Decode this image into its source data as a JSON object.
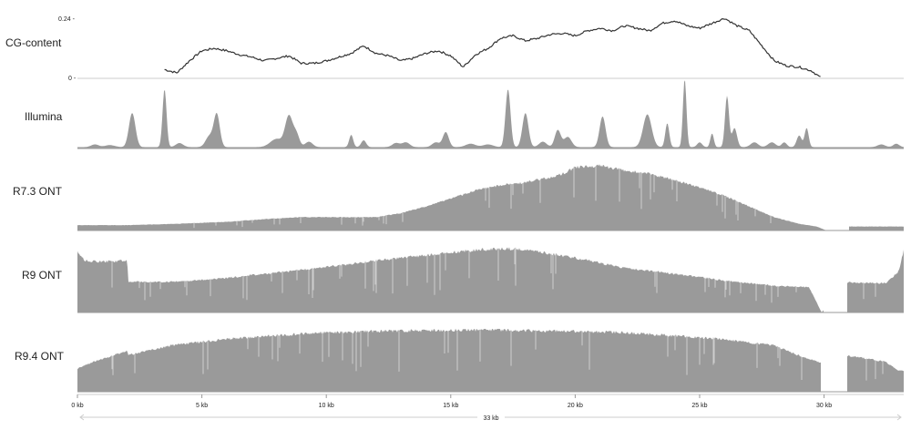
{
  "chart_data": {
    "type": "area",
    "x_unit": "kb",
    "xlim": [
      0,
      33.2
    ],
    "x_ticks": [
      {
        "value": 0,
        "label": "0 kb"
      },
      {
        "value": 5,
        "label": "5 kb"
      },
      {
        "value": 10,
        "label": "10 kb"
      },
      {
        "value": 15,
        "label": "15 kb"
      },
      {
        "value": 20,
        "label": "20 kb"
      },
      {
        "value": 25,
        "label": "25 kb"
      },
      {
        "value": 30,
        "label": "30 kb"
      }
    ],
    "span_label": "33 kb",
    "colors": {
      "fill": "#9a9a9a",
      "line": "#333333",
      "axis": "#cccccc"
    },
    "tracks": [
      {
        "name": "CG-content",
        "style": "line",
        "ylim": [
          0,
          0.24
        ],
        "y_ticks": [
          {
            "value": 0.24,
            "label": "0.24 -"
          },
          {
            "value": 0,
            "label": "0 -"
          }
        ],
        "x": [
          3.5,
          4.0,
          4.5,
          5.0,
          5.5,
          6.0,
          6.5,
          7.0,
          7.5,
          8.0,
          8.5,
          9.0,
          9.5,
          10.0,
          10.5,
          11.0,
          11.5,
          12.0,
          12.5,
          13.0,
          13.5,
          14.0,
          14.5,
          15.0,
          15.5,
          16.0,
          16.5,
          17.0,
          17.5,
          18.0,
          18.5,
          19.0,
          19.5,
          20.0,
          20.5,
          21.0,
          21.5,
          22.0,
          22.5,
          23.0,
          23.5,
          24.0,
          24.5,
          25.0,
          25.5,
          26.0,
          26.5,
          27.0,
          27.5,
          28.0,
          28.5,
          29.0,
          29.5,
          29.9
        ],
        "values": [
          0.035,
          0.022,
          0.07,
          0.11,
          0.12,
          0.11,
          0.095,
          0.085,
          0.07,
          0.08,
          0.09,
          0.06,
          0.06,
          0.07,
          0.085,
          0.1,
          0.13,
          0.1,
          0.09,
          0.07,
          0.08,
          0.1,
          0.11,
          0.09,
          0.045,
          0.095,
          0.12,
          0.16,
          0.17,
          0.15,
          0.16,
          0.175,
          0.18,
          0.17,
          0.19,
          0.2,
          0.19,
          0.21,
          0.2,
          0.19,
          0.22,
          0.23,
          0.21,
          0.2,
          0.22,
          0.24,
          0.21,
          0.19,
          0.13,
          0.07,
          0.05,
          0.045,
          0.03,
          0.0
        ]
      },
      {
        "name": "Illumina",
        "style": "peaks",
        "baseline": 0.02,
        "peaks": [
          [
            0.7,
            0.04,
            0.15
          ],
          [
            1.3,
            0.03,
            0.2
          ],
          [
            2.2,
            0.5,
            0.13
          ],
          [
            3.5,
            0.85,
            0.08
          ],
          [
            4.1,
            0.06,
            0.15
          ],
          [
            5.3,
            0.16,
            0.15
          ],
          [
            5.6,
            0.48,
            0.12
          ],
          [
            8.0,
            0.12,
            0.25
          ],
          [
            8.5,
            0.45,
            0.15
          ],
          [
            8.8,
            0.18,
            0.12
          ],
          [
            9.3,
            0.08,
            0.15
          ],
          [
            11.0,
            0.18,
            0.08
          ],
          [
            11.5,
            0.1,
            0.1
          ],
          [
            12.8,
            0.06,
            0.15
          ],
          [
            13.2,
            0.07,
            0.15
          ],
          [
            14.4,
            0.07,
            0.15
          ],
          [
            14.8,
            0.22,
            0.12
          ],
          [
            15.8,
            0.05,
            0.2
          ],
          [
            16.5,
            0.04,
            0.2
          ],
          [
            17.3,
            0.85,
            0.1
          ],
          [
            18.0,
            0.5,
            0.12
          ],
          [
            18.7,
            0.08,
            0.15
          ],
          [
            19.3,
            0.25,
            0.12
          ],
          [
            19.7,
            0.15,
            0.15
          ],
          [
            21.1,
            0.45,
            0.12
          ],
          [
            22.9,
            0.48,
            0.17
          ],
          [
            23.7,
            0.35,
            0.08
          ],
          [
            24.4,
            1.0,
            0.07
          ],
          [
            25.0,
            0.07,
            0.1
          ],
          [
            25.5,
            0.2,
            0.07
          ],
          [
            26.1,
            0.75,
            0.08
          ],
          [
            26.4,
            0.28,
            0.1
          ],
          [
            27.2,
            0.07,
            0.15
          ],
          [
            27.9,
            0.07,
            0.15
          ],
          [
            28.4,
            0.07,
            0.1
          ],
          [
            29.0,
            0.17,
            0.1
          ],
          [
            29.3,
            0.28,
            0.08
          ],
          [
            32.3,
            0.04,
            0.15
          ],
          [
            32.9,
            0.05,
            0.12
          ]
        ]
      },
      {
        "name": "R7.3 ONT",
        "style": "coverage",
        "x": [
          0,
          2.0,
          4.0,
          6.0,
          7.5,
          9.0,
          11.0,
          12.0,
          13.0,
          14.0,
          15.0,
          16.0,
          17.0,
          18.0,
          19.0,
          19.5,
          20.0,
          21.0,
          22.0,
          23.0,
          24.0,
          25.0,
          26.0,
          27.0,
          28.0,
          29.0,
          29.7,
          30.1,
          31.0,
          33.2
        ],
        "values": [
          0.08,
          0.08,
          0.1,
          0.13,
          0.17,
          0.2,
          0.2,
          0.2,
          0.26,
          0.36,
          0.48,
          0.6,
          0.68,
          0.72,
          0.8,
          0.85,
          0.95,
          0.97,
          0.9,
          0.85,
          0.75,
          0.65,
          0.52,
          0.36,
          0.2,
          0.1,
          0.06,
          0.0,
          0.06,
          0.06
        ],
        "gaps": [
          [
            30.1,
            31.0
          ]
        ]
      },
      {
        "name": "R9 ONT",
        "style": "coverage",
        "x": [
          0,
          0.3,
          1.0,
          2.0,
          2.05,
          4.0,
          6.0,
          8.0,
          10.0,
          12.0,
          14.0,
          15.5,
          16.5,
          17.3,
          18.0,
          19.0,
          20.0,
          21.0,
          22.0,
          24.0,
          26.0,
          28.0,
          29.4,
          29.9,
          30.9,
          32.5,
          33.0,
          33.2
        ],
        "values": [
          0.92,
          0.78,
          0.76,
          0.78,
          0.46,
          0.46,
          0.52,
          0.6,
          0.68,
          0.78,
          0.86,
          0.92,
          0.95,
          0.96,
          0.94,
          0.88,
          0.82,
          0.74,
          0.67,
          0.58,
          0.48,
          0.4,
          0.38,
          0.0,
          0.45,
          0.44,
          0.62,
          0.92
        ],
        "gaps": [
          [
            30.0,
            30.9
          ]
        ]
      },
      {
        "name": "R9.4 ONT",
        "style": "coverage",
        "x": [
          0,
          0.6,
          1.2,
          1.8,
          2.0,
          2.05,
          4.0,
          6.0,
          8.0,
          10.0,
          12.0,
          14.0,
          16.0,
          18.0,
          20.0,
          22.0,
          24.0,
          26.0,
          28.0,
          29.0,
          29.8,
          30.9,
          31.5,
          32.5,
          33.0
        ],
        "values": [
          0.35,
          0.45,
          0.52,
          0.6,
          0.62,
          0.56,
          0.72,
          0.8,
          0.86,
          0.9,
          0.92,
          0.93,
          0.94,
          0.93,
          0.92,
          0.9,
          0.85,
          0.8,
          0.7,
          0.55,
          0.45,
          0.55,
          0.52,
          0.45,
          0.32
        ],
        "gaps": [
          [
            29.9,
            30.9
          ]
        ]
      }
    ]
  }
}
